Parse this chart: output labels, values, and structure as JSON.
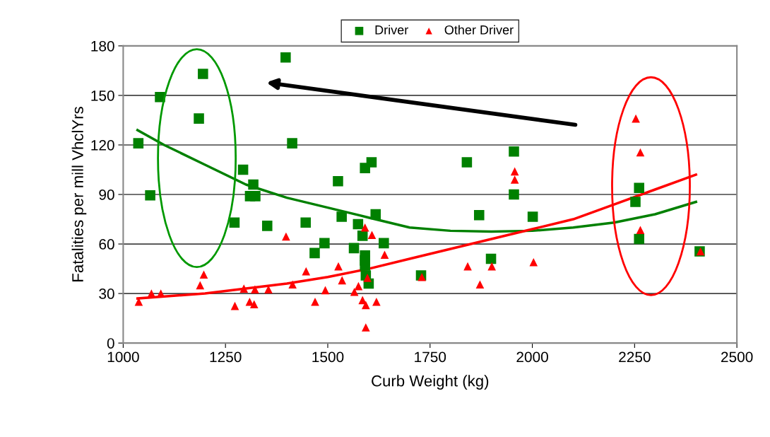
{
  "chart_data": {
    "type": "scatter",
    "xlabel": "Curb Weight (kg)",
    "ylabel": "Fatalities per mill VhclYrs",
    "xlim": [
      1000,
      2500
    ],
    "xticks": [
      1000,
      1250,
      1500,
      1750,
      2000,
      2250,
      2500
    ],
    "ylim": [
      0,
      180
    ],
    "yticks": [
      0,
      30,
      60,
      90,
      120,
      150,
      180
    ],
    "grid": "y",
    "legend": "top",
    "series": [
      {
        "name": "Driver",
        "color": "#008000",
        "marker": "square",
        "x": [
          1037,
          1066,
          1090,
          1185,
          1195,
          1272,
          1293,
          1310,
          1318,
          1323,
          1352,
          1397,
          1413,
          1446,
          1468,
          1492,
          1525,
          1534,
          1564,
          1574,
          1585,
          1591,
          1591,
          1591,
          1591,
          1593,
          1600,
          1607,
          1617,
          1637,
          1728,
          1840,
          1870,
          1899,
          1955,
          1955,
          2001,
          2252,
          2261,
          2261,
          2409
        ],
        "values": [
          121,
          89.5,
          149,
          136,
          163,
          73,
          105,
          89,
          96,
          89,
          71,
          173,
          121,
          73,
          54.5,
          60.5,
          98,
          76.5,
          57.5,
          72,
          65,
          106,
          53,
          50,
          47,
          41,
          36,
          109.5,
          78,
          60.5,
          41,
          109.5,
          77.5,
          51,
          116,
          90,
          76.5,
          85.5,
          94,
          63,
          55.5
        ]
      },
      {
        "name": "Other Driver",
        "color": "#ff0000",
        "marker": "triangle",
        "x": [
          1038,
          1069,
          1092,
          1188,
          1197,
          1273,
          1295,
          1309,
          1320,
          1322,
          1355,
          1398,
          1414,
          1447,
          1469,
          1494,
          1526,
          1535,
          1565,
          1575,
          1585,
          1591,
          1593,
          1593,
          1597,
          1608,
          1619,
          1639,
          1730,
          1842,
          1872,
          1901,
          1957,
          1957,
          2003,
          2253,
          2264,
          2264,
          2411
        ],
        "values": [
          25,
          30,
          30,
          35,
          41.5,
          22.5,
          33,
          25,
          23.5,
          32.5,
          32.5,
          64.5,
          35.5,
          43.5,
          25,
          32,
          46.5,
          38,
          31,
          34.5,
          26,
          70,
          23,
          9.5,
          39.5,
          65.5,
          25,
          53.5,
          40,
          46.5,
          35.5,
          46.5,
          104,
          99,
          49,
          136,
          115.5,
          68.5,
          55.5
        ]
      },
      {
        "type": "line",
        "color": "#008000",
        "x": [
          1035,
          1100,
          1200,
          1300,
          1400,
          1500,
          1600,
          1700,
          1800,
          1900,
          2000,
          2100,
          2200,
          2300,
          2400
        ],
        "values": [
          129,
          120,
          108,
          96,
          88,
          82,
          76,
          70,
          68,
          67.5,
          68,
          70,
          73,
          78,
          85.5
        ]
      },
      {
        "type": "line",
        "color": "#ff0000",
        "x": [
          1035,
          1200,
          1300,
          1400,
          1500,
          1600,
          1700,
          1800,
          1900,
          2000,
          2100,
          2200,
          2300,
          2400
        ],
        "values": [
          27,
          30,
          33,
          36,
          40,
          45,
          51,
          57,
          63,
          69,
          75,
          84,
          93,
          102
        ]
      }
    ]
  }
}
